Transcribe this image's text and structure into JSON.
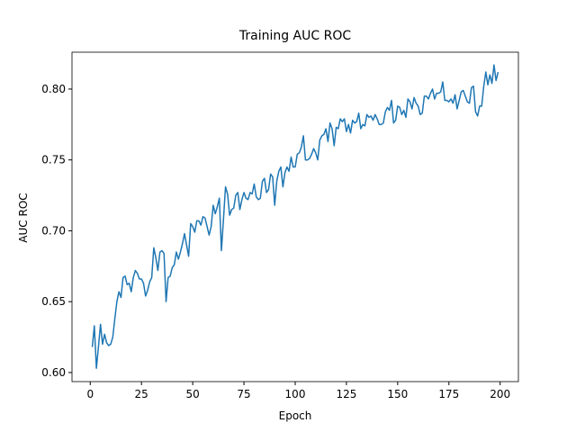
{
  "chart_data": {
    "type": "line",
    "title": "Training AUC ROC",
    "x_label": "Epoch",
    "y_label": "AUC ROC",
    "color": "#1f77b4",
    "x": [
      1,
      2,
      3,
      4,
      5,
      6,
      7,
      8,
      9,
      10,
      11,
      12,
      13,
      14,
      15,
      16,
      17,
      18,
      19,
      20,
      21,
      22,
      23,
      24,
      25,
      26,
      27,
      28,
      29,
      30,
      31,
      32,
      33,
      34,
      35,
      36,
      37,
      38,
      39,
      40,
      41,
      42,
      43,
      44,
      45,
      46,
      47,
      48,
      49,
      50,
      51,
      52,
      53,
      54,
      55,
      56,
      57,
      58,
      59,
      60,
      61,
      62,
      63,
      64,
      65,
      66,
      67,
      68,
      69,
      70,
      71,
      72,
      73,
      74,
      75,
      76,
      77,
      78,
      79,
      80,
      81,
      82,
      83,
      84,
      85,
      86,
      87,
      88,
      89,
      90,
      91,
      92,
      93,
      94,
      95,
      96,
      97,
      98,
      99,
      100,
      101,
      102,
      103,
      104,
      105,
      106,
      107,
      108,
      109,
      110,
      111,
      112,
      113,
      114,
      115,
      116,
      117,
      118,
      119,
      120,
      121,
      122,
      123,
      124,
      125,
      126,
      127,
      128,
      129,
      130,
      131,
      132,
      133,
      134,
      135,
      136,
      137,
      138,
      139,
      140,
      141,
      142,
      143,
      144,
      145,
      146,
      147,
      148,
      149,
      150,
      151,
      152,
      153,
      154,
      155,
      156,
      157,
      158,
      159,
      160,
      161,
      162,
      163,
      164,
      165,
      166,
      167,
      168,
      169,
      170,
      171,
      172,
      173,
      174,
      175,
      176,
      177,
      178,
      179,
      180,
      181,
      182,
      183,
      184,
      185,
      186,
      187,
      188,
      189,
      190,
      191,
      192,
      193,
      194,
      195,
      196,
      197,
      198,
      199
    ],
    "values": [
      0.618,
      0.633,
      0.603,
      0.618,
      0.634,
      0.62,
      0.627,
      0.621,
      0.619,
      0.62,
      0.625,
      0.638,
      0.65,
      0.657,
      0.653,
      0.667,
      0.668,
      0.662,
      0.663,
      0.657,
      0.667,
      0.672,
      0.67,
      0.666,
      0.666,
      0.663,
      0.654,
      0.658,
      0.664,
      0.667,
      0.688,
      0.681,
      0.672,
      0.685,
      0.686,
      0.684,
      0.65,
      0.667,
      0.668,
      0.674,
      0.676,
      0.685,
      0.68,
      0.685,
      0.691,
      0.698,
      0.69,
      0.682,
      0.705,
      0.703,
      0.699,
      0.707,
      0.707,
      0.704,
      0.71,
      0.709,
      0.703,
      0.697,
      0.703,
      0.718,
      0.712,
      0.717,
      0.723,
      0.686,
      0.708,
      0.731,
      0.726,
      0.711,
      0.715,
      0.716,
      0.725,
      0.727,
      0.715,
      0.722,
      0.727,
      0.723,
      0.722,
      0.727,
      0.726,
      0.733,
      0.724,
      0.722,
      0.723,
      0.735,
      0.737,
      0.727,
      0.729,
      0.74,
      0.738,
      0.718,
      0.735,
      0.742,
      0.745,
      0.731,
      0.741,
      0.745,
      0.742,
      0.752,
      0.745,
      0.745,
      0.754,
      0.755,
      0.759,
      0.767,
      0.75,
      0.75,
      0.751,
      0.754,
      0.758,
      0.755,
      0.75,
      0.764,
      0.767,
      0.768,
      0.772,
      0.763,
      0.776,
      0.772,
      0.76,
      0.773,
      0.772,
      0.779,
      0.777,
      0.779,
      0.77,
      0.775,
      0.769,
      0.778,
      0.776,
      0.777,
      0.783,
      0.772,
      0.775,
      0.774,
      0.782,
      0.78,
      0.781,
      0.778,
      0.782,
      0.779,
      0.775,
      0.775,
      0.776,
      0.784,
      0.787,
      0.785,
      0.792,
      0.776,
      0.778,
      0.788,
      0.787,
      0.782,
      0.785,
      0.78,
      0.793,
      0.791,
      0.786,
      0.794,
      0.79,
      0.788,
      0.782,
      0.783,
      0.795,
      0.795,
      0.793,
      0.797,
      0.8,
      0.793,
      0.797,
      0.797,
      0.798,
      0.805,
      0.792,
      0.792,
      0.791,
      0.793,
      0.79,
      0.796,
      0.786,
      0.792,
      0.798,
      0.799,
      0.795,
      0.791,
      0.79,
      0.801,
      0.802,
      0.784,
      0.781,
      0.788,
      0.788,
      0.802,
      0.812,
      0.803,
      0.81,
      0.804,
      0.817,
      0.806,
      0.812
    ],
    "xlim": [
      -8.9,
      208.9
    ],
    "xticks": [
      0,
      25,
      50,
      75,
      100,
      125,
      150,
      175,
      200
    ],
    "ylim": [
      0.5936,
      0.826
    ],
    "yticks": [
      {
        "value": 0.6,
        "label": "0.60"
      },
      0.65,
      {
        "value": 0.7,
        "label": "0.70"
      },
      0.75,
      {
        "value": 0.8,
        "label": "0.80"
      }
    ],
    "grid": false
  }
}
